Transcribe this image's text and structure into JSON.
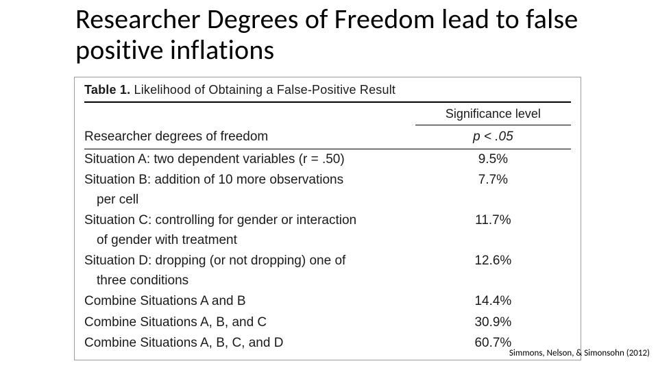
{
  "slide": {
    "title": "Researcher Degrees of Freedom lead to false positive inflations",
    "citation": "Simmons, Nelson, & Simonsohn (2012)"
  },
  "table": {
    "caption_label": "Table 1.",
    "caption_text": "Likelihood of Obtaining a False-Positive Result",
    "header_right": "Significance level",
    "subheader_left": "Researcher degrees of freedom",
    "subheader_right": "p < .05",
    "rows": [
      {
        "label": "Situation A: two dependent variables (r = .50)",
        "cont": "",
        "value": "9.5%"
      },
      {
        "label": "Situation B: addition of 10 more observations",
        "cont": "per cell",
        "value": "7.7%"
      },
      {
        "label": "Situation C: controlling for gender or interaction",
        "cont": "of gender with treatment",
        "value": "11.7%"
      },
      {
        "label": "Situation D: dropping (or not dropping) one of",
        "cont": "three conditions",
        "value": "12.6%"
      },
      {
        "label": "Combine Situations A and B",
        "cont": "",
        "value": "14.4%"
      },
      {
        "label": "Combine Situations A, B, and C",
        "cont": "",
        "value": "30.9%"
      },
      {
        "label": "Combine Situations A, B, C, and D",
        "cont": "",
        "value": "60.7%"
      }
    ]
  },
  "style": {
    "title_fontsize": 40,
    "body_fontsize": 19,
    "title_color": "#000000",
    "border_color": "#9a9a9a",
    "background": "#ffffff"
  }
}
